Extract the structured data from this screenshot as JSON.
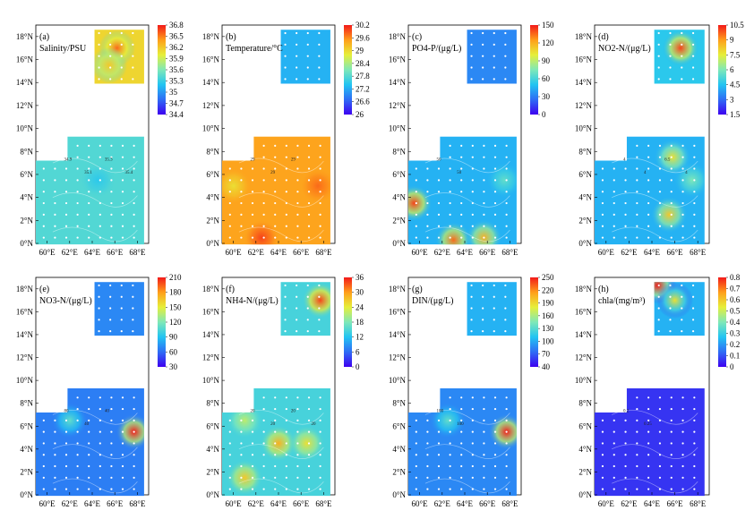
{
  "chart_data": [
    {
      "type": "heatmap",
      "label": "(a)",
      "variable": "Salinity/PSU",
      "colorbar_ticks": [
        "36.8",
        "36.5",
        "36.2",
        "35.9",
        "35.6",
        "35.3",
        "35",
        "34.7",
        "34.4"
      ],
      "contour_labels": [
        "34.9",
        "35.1",
        "35.3",
        "35.4"
      ],
      "lat_ticks": [
        "18°N",
        "16°N",
        "14°N",
        "12°N",
        "10°N",
        "8°N",
        "6°N",
        "4°N",
        "2°N",
        "0°N"
      ],
      "lon_ticks": [
        "60°E",
        "62°E",
        "64°E",
        "66°E",
        "68°E"
      ],
      "hotspots": [
        {
          "lon": 66.2,
          "lat": 17.0,
          "level": 0.9
        },
        {
          "lon": 65.5,
          "lat": 15.5,
          "level": 0.75
        },
        {
          "lon": 64.5,
          "lat": 5.5,
          "level": 0.35
        }
      ],
      "background_level": 0.42,
      "inset_level": 0.72
    },
    {
      "type": "heatmap",
      "label": "(b)",
      "variable": "Temperature/°C",
      "colorbar_ticks": [
        "30.2",
        "29.6",
        "29",
        "28.4",
        "27.8",
        "27.2",
        "26.6",
        "26"
      ],
      "contour_labels": [
        "29",
        "29",
        "29"
      ],
      "lat_ticks": [
        "18°N",
        "16°N",
        "14°N",
        "12°N",
        "10°N",
        "8°N",
        "6°N",
        "4°N",
        "2°N",
        "0°N"
      ],
      "lon_ticks": [
        "60°E",
        "62°E",
        "64°E",
        "66°E",
        "68°E"
      ],
      "hotspots": [
        {
          "lon": 62.5,
          "lat": 0.5,
          "level": 0.95
        },
        {
          "lon": 67.5,
          "lat": 5.0,
          "level": 0.9
        },
        {
          "lon": 60.0,
          "lat": 5.0,
          "level": 0.7
        }
      ],
      "background_level": 0.82,
      "inset_level": 0.3
    },
    {
      "type": "heatmap",
      "label": "(c)",
      "variable": "PO4-P/(μg/L)",
      "colorbar_ticks": [
        "150",
        "120",
        "90",
        "60",
        "30",
        "0"
      ],
      "contour_labels": [
        "50",
        "50"
      ],
      "lat_ticks": [
        "18°N",
        "16°N",
        "14°N",
        "12°N",
        "10°N",
        "8°N",
        "6°N",
        "4°N",
        "2°N",
        "0°N"
      ],
      "lon_ticks": [
        "60°E",
        "62°E",
        "64°E",
        "66°E",
        "68°E"
      ],
      "hotspots": [
        {
          "lon": 59.5,
          "lat": 3.5,
          "level": 0.95
        },
        {
          "lon": 63.0,
          "lat": 0.3,
          "level": 0.9
        },
        {
          "lon": 65.7,
          "lat": 0.5,
          "level": 0.8
        },
        {
          "lon": 67.5,
          "lat": 5.5,
          "level": 0.45
        }
      ],
      "background_level": 0.3,
      "inset_level": 0.22
    },
    {
      "type": "heatmap",
      "label": "(d)",
      "variable": "NO2-N/(μg/L)",
      "colorbar_ticks": [
        "10.5",
        "9",
        "7.5",
        "6",
        "4.5",
        "3",
        "1.5"
      ],
      "contour_labels": [
        "4",
        "4",
        "6.5",
        "4"
      ],
      "lat_ticks": [
        "18°N",
        "16°N",
        "14°N",
        "12°N",
        "10°N",
        "8°N",
        "6°N",
        "4°N",
        "2°N",
        "0°N"
      ],
      "lon_ticks": [
        "60°E",
        "62°E",
        "64°E",
        "66°E",
        "68°E"
      ],
      "hotspots": [
        {
          "lon": 66.5,
          "lat": 17.0,
          "level": 0.95
        },
        {
          "lon": 65.8,
          "lat": 7.5,
          "level": 0.7
        },
        {
          "lon": 65.5,
          "lat": 2.5,
          "level": 0.75
        },
        {
          "lon": 67.5,
          "lat": 5.5,
          "level": 0.5
        }
      ],
      "background_level": 0.3,
      "inset_level": 0.35
    },
    {
      "type": "heatmap",
      "label": "(e)",
      "variable": "NO3-N/(μg/L)",
      "colorbar_ticks": [
        "210",
        "180",
        "150",
        "120",
        "90",
        "60",
        "30"
      ],
      "contour_labels": [
        "80",
        "40",
        "40"
      ],
      "lat_ticks": [
        "18°N",
        "16°N",
        "14°N",
        "12°N",
        "10°N",
        "8°N",
        "6°N",
        "4°N",
        "2°N",
        "0°N"
      ],
      "lon_ticks": [
        "60°E",
        "62°E",
        "64°E",
        "66°E",
        "68°E"
      ],
      "hotspots": [
        {
          "lon": 67.7,
          "lat": 5.5,
          "level": 1.0
        },
        {
          "lon": 62.0,
          "lat": 6.5,
          "level": 0.45
        }
      ],
      "background_level": 0.2,
      "inset_level": 0.22
    },
    {
      "type": "heatmap",
      "label": "(f)",
      "variable": "NH4-N/(μg/L)",
      "colorbar_ticks": [
        "36",
        "30",
        "24",
        "18",
        "12",
        "6",
        "0"
      ],
      "contour_labels": [
        "20",
        "20",
        "20",
        "20"
      ],
      "lat_ticks": [
        "18°N",
        "16°N",
        "14°N",
        "12°N",
        "10°N",
        "8°N",
        "6°N",
        "4°N",
        "2°N",
        "0°N"
      ],
      "lon_ticks": [
        "60°E",
        "62°E",
        "64°E",
        "66°E",
        "68°E"
      ],
      "hotspots": [
        {
          "lon": 67.7,
          "lat": 17.0,
          "level": 0.95
        },
        {
          "lon": 61.0,
          "lat": 1.5,
          "level": 0.75
        },
        {
          "lon": 64.0,
          "lat": 4.5,
          "level": 0.8
        },
        {
          "lon": 66.5,
          "lat": 4.5,
          "level": 0.7
        },
        {
          "lon": 61.0,
          "lat": 6.5,
          "level": 0.6
        }
      ],
      "background_level": 0.4,
      "inset_level": 0.4
    },
    {
      "type": "heatmap",
      "label": "(g)",
      "variable": "DIN/(μg/L)",
      "colorbar_ticks": [
        "250",
        "220",
        "190",
        "160",
        "130",
        "100",
        "70",
        "40"
      ],
      "contour_labels": [
        "100",
        "100"
      ],
      "lat_ticks": [
        "18°N",
        "16°N",
        "14°N",
        "12°N",
        "10°N",
        "8°N",
        "6°N",
        "4°N",
        "2°N",
        "0°N"
      ],
      "lon_ticks": [
        "60°E",
        "62°E",
        "64°E",
        "66°E",
        "68°E"
      ],
      "hotspots": [
        {
          "lon": 67.7,
          "lat": 5.5,
          "level": 1.0
        },
        {
          "lon": 62.5,
          "lat": 6.5,
          "level": 0.45
        }
      ],
      "background_level": 0.22,
      "inset_level": 0.3
    },
    {
      "type": "heatmap",
      "label": "(h)",
      "variable": "chla/(mg/m³)",
      "colorbar_ticks": [
        "0.8",
        "0.7",
        "0.6",
        "0.5",
        "0.4",
        "0.3",
        "0.2",
        "0.1",
        "0"
      ],
      "contour_labels": [
        "0.2",
        "0.25"
      ],
      "lat_ticks": [
        "18°N",
        "16°N",
        "14°N",
        "12°N",
        "10°N",
        "8°N",
        "6°N",
        "4°N",
        "2°N",
        "0°N"
      ],
      "lon_ticks": [
        "60°E",
        "62°E",
        "64°E",
        "66°E",
        "68°E"
      ],
      "hotspots": [
        {
          "lon": 64.5,
          "lat": 18.3,
          "level": 1.0
        },
        {
          "lon": 66.0,
          "lat": 17.0,
          "level": 0.7
        }
      ],
      "background_level": 0.08,
      "inset_level": 0.3
    }
  ],
  "colors": {
    "colormap": [
      "#3d00f0",
      "#2f6cf5",
      "#22c4f2",
      "#7fe8b8",
      "#e6ef3a",
      "#ff9e1a",
      "#f21a1a"
    ]
  }
}
